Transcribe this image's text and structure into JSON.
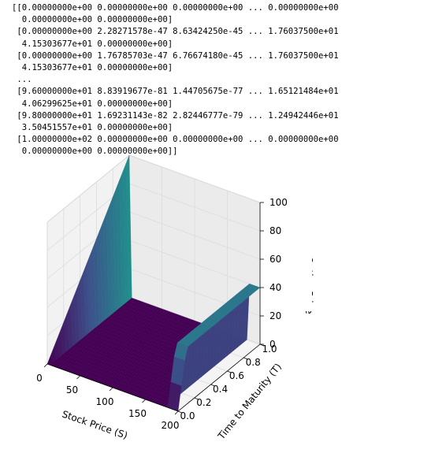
{
  "output": {
    "lines": [
      "[[0.00000000e+00 0.00000000e+00 0.00000000e+00 ... 0.00000000e+00",
      "  0.00000000e+00 0.00000000e+00]",
      " [0.00000000e+00 2.28271578e-47 8.63424250e-45 ... 1.76037500e+01",
      "  4.15303677e+01 0.00000000e+00]",
      " [0.00000000e+00 1.76785703e-47 6.76674180e-45 ... 1.76037500e+01",
      "  4.15303677e+01 0.00000000e+00]",
      " ...",
      " [9.60000000e+01 8.83919677e-81 1.44705675e-77 ... 1.65121484e+01",
      "  4.06299625e+01 0.00000000e+00]",
      " [9.80000000e+01 1.69231143e-82 2.82446777e-79 ... 1.24942446e+01",
      "  3.50451557e+01 0.00000000e+00]",
      " [1.00000000e+02 0.00000000e+00 0.00000000e+00 ... 0.00000000e+00",
      "  0.00000000e+00 0.00000000e+00]]"
    ]
  },
  "chart_data": {
    "type": "surface3d",
    "title": "",
    "xlabel": "Stock Price (S)",
    "ylabel": "Time to Maturity (T)",
    "zlabel": "Option Price",
    "x_ticks": [
      "0",
      "50",
      "100",
      "150",
      "200"
    ],
    "y_ticks": [
      "0.0",
      "0.2",
      "0.4",
      "0.6",
      "0.8",
      "1.0"
    ],
    "z_ticks": [
      "0",
      "20",
      "40",
      "60",
      "80",
      "100"
    ],
    "xlim": [
      0,
      200
    ],
    "ylim": [
      0,
      1
    ],
    "zlim": [
      0,
      100
    ],
    "colormap": "viridis",
    "colors": [
      "#440154",
      "#3b528b",
      "#21918c",
      "#5ec962",
      "#fde725"
    ],
    "surface": {
      "base_value": 0,
      "ridge_at_S0": {
        "stock_price": 0,
        "time": [
          0,
          0.1,
          0.2,
          0.3,
          0.4,
          0.5,
          0.6,
          0.7,
          0.8,
          0.9,
          1.0
        ],
        "price": [
          0,
          10,
          20,
          30,
          40,
          50,
          60,
          70,
          80,
          90,
          100
        ]
      },
      "wall_at_Smax": {
        "stock_price": 200,
        "time": [
          0,
          0.1,
          0.2,
          0.3,
          0.4,
          0.5,
          0.6,
          0.7,
          0.8,
          0.9,
          1.0
        ],
        "price": [
          0,
          40,
          40,
          40,
          40,
          40,
          40,
          40,
          40,
          40,
          40
        ]
      }
    }
  }
}
